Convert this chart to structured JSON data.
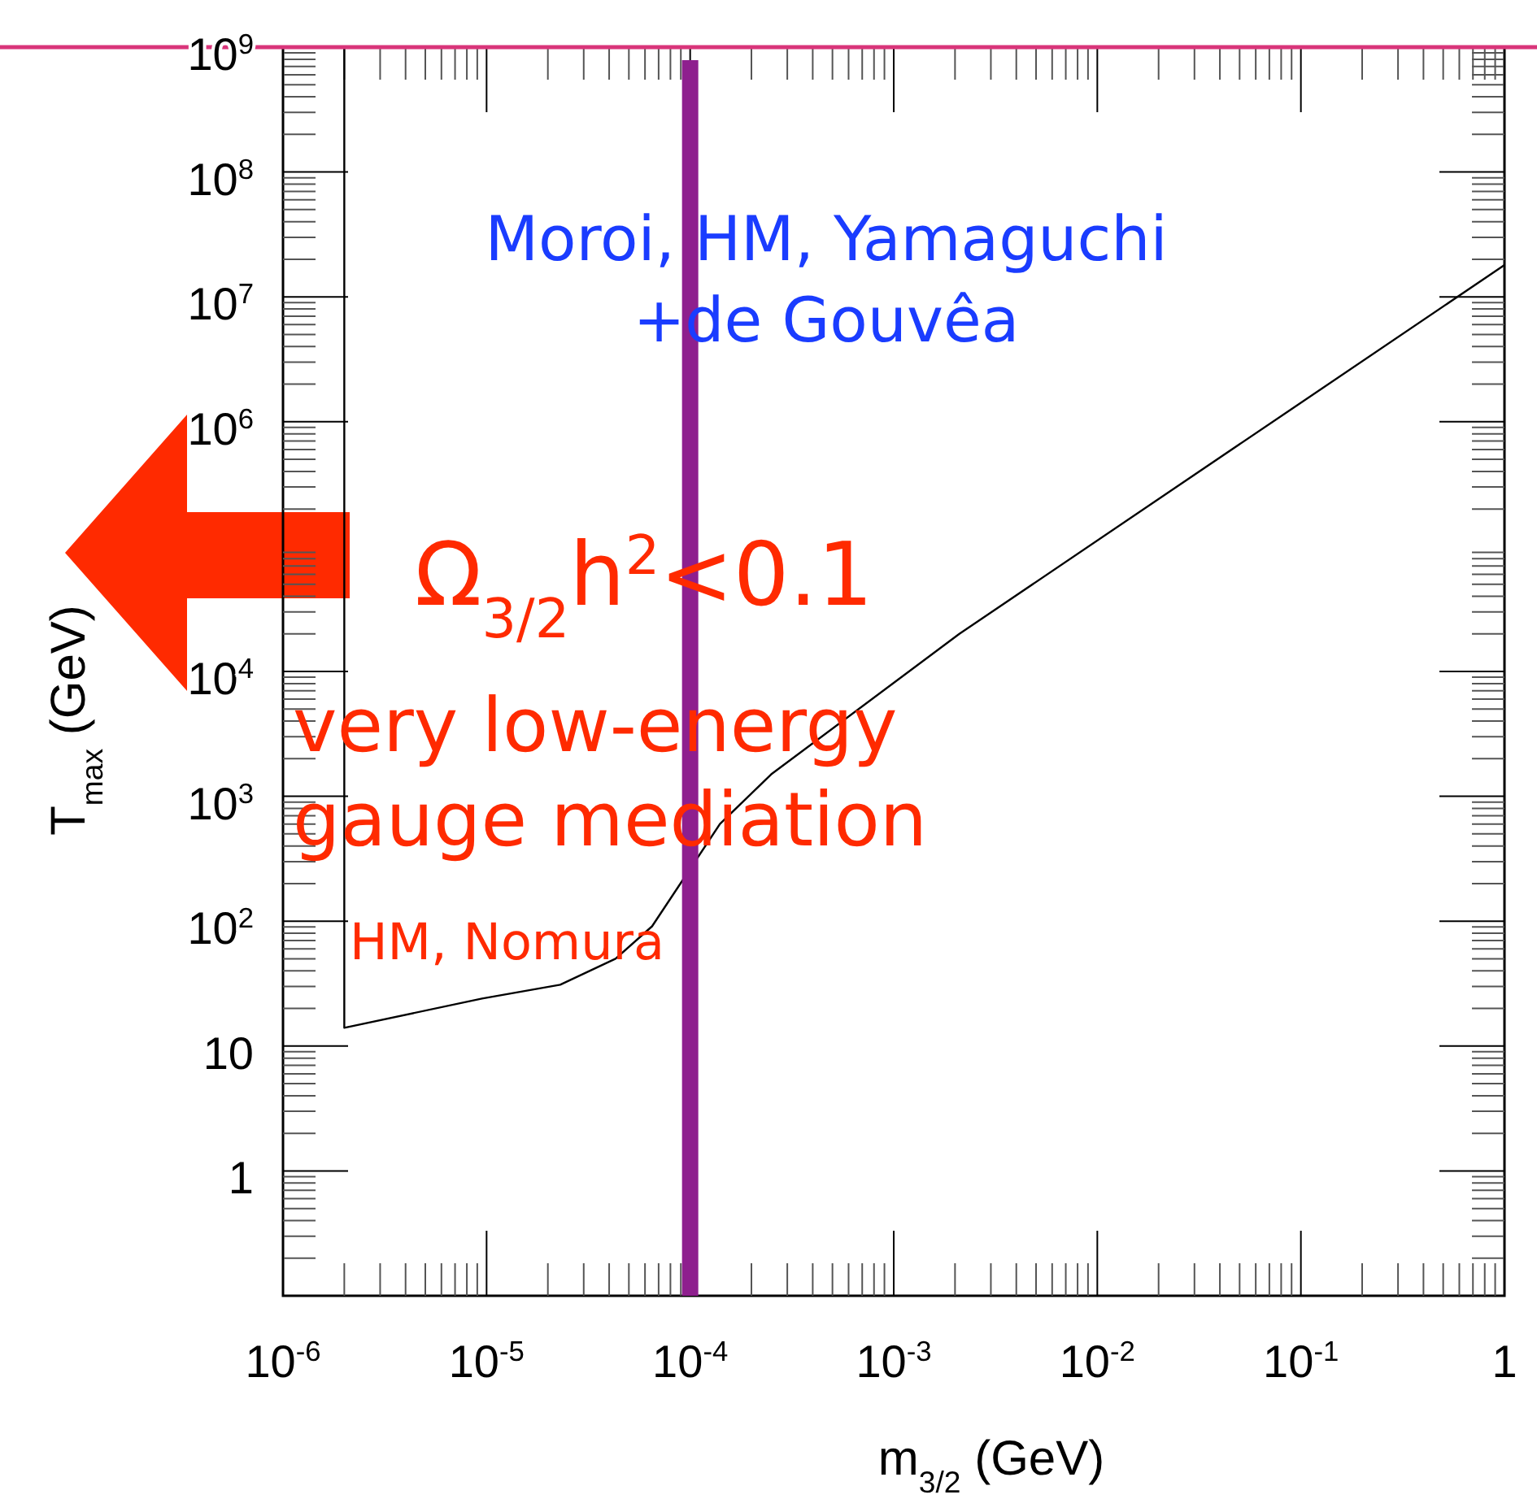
{
  "chart_data": {
    "type": "line",
    "xlabel": "m$_{3/2}$ (GeV)",
    "ylabel": "T$_{max}$ (GeV)",
    "log": "xy",
    "xlim": [
      1e-06,
      1
    ],
    "ylim": [
      0.1,
      1000000000.0
    ],
    "xticks": [
      {
        "value": 1e-06,
        "label": "10$^{-6}$"
      },
      {
        "value": 1e-05,
        "label": "10$^{-5}$"
      },
      {
        "value": 0.0001,
        "label": "10$^{-4}$"
      },
      {
        "value": 0.001,
        "label": "10$^{-3}$"
      },
      {
        "value": 0.01,
        "label": "10$^{-2}$"
      },
      {
        "value": 0.1,
        "label": "10$^{-1}$"
      },
      1
    ],
    "yticks": [
      1,
      10,
      {
        "value": 100,
        "label": "10$^{2}$"
      },
      {
        "value": 1000,
        "label": "10$^{3}$"
      },
      {
        "value": 10000,
        "label": "10$^{4}$"
      },
      {
        "value": 1000000,
        "label": "10$^{6}$"
      },
      {
        "value": 10000000,
        "label": "10$^{7}$"
      },
      {
        "value": 100000000,
        "label": "10$^{8}$"
      },
      {
        "value": 1000000000,
        "label": "10$^{9}$"
      }
    ],
    "grid": false,
    "line_style": "solid",
    "series": [
      {
        "color": "#000000",
        "x": [
          2e-06,
          2e-06,
          9.5e-06,
          2.3e-05,
          4.3e-05,
          6.5e-05,
          0.00014,
          0.00025,
          0.0021,
          1
        ],
        "values": [
          1000000000.0,
          14,
          24,
          31,
          50,
          91,
          600,
          1500,
          20000,
          18000000
        ]
      }
    ],
    "ref_lines": [
      {
        "axis": "x",
        "value": 0.0001,
        "color": "#8e1f8e"
      },
      {
        "axis": "y",
        "value": 1000000000.0,
        "color": "#d9357a"
      }
    ],
    "annotations": [
      "Moroi, HM, Yamaguchi\n+de Gouvêa",
      "Ω$_{3/2}$h$^{2}$<0.1",
      "very low-energy\ngauge mediation",
      "HM, Nomura"
    ]
  }
}
